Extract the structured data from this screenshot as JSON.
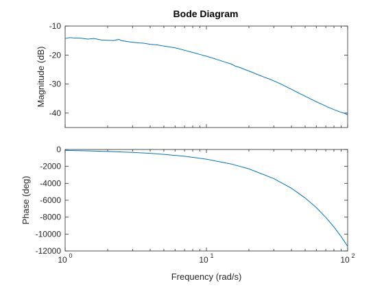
{
  "chart_data": {
    "type": "line",
    "title": "Bode Diagram",
    "xlabel": "Frequency (rad/s)",
    "xscale": "log",
    "xlim": [
      1,
      100
    ],
    "x_ticks": [
      1,
      10,
      100
    ],
    "x_tick_labels": [
      {
        "base": "10",
        "exp": "0"
      },
      {
        "base": "10",
        "exp": "1"
      },
      {
        "base": "10",
        "exp": "2"
      }
    ],
    "line_color": "#0072BD",
    "panels": [
      {
        "name": "magnitude",
        "ylabel": "Magnitude (dB)",
        "ylim": [
          -45,
          -10
        ],
        "y_ticks": [
          -10,
          -20,
          -30,
          -40
        ],
        "series": [
          {
            "x": [
              1.0,
              1.08,
              1.15,
              1.3,
              1.45,
              1.6,
              1.8,
              2.0,
              2.2,
              2.4,
              2.5,
              2.7,
              3.0,
              3.3,
              3.6,
              4.0,
              4.5,
              5.0,
              5.5,
              6.0,
              6.6,
              7.2,
              8.0,
              9.0,
              10.0,
              11.0,
              12.0,
              13.5,
              15.0,
              16.0,
              17.5,
              19.0,
              21.0,
              23.0,
              25.0,
              28.0,
              31.0,
              34.0,
              37.0,
              40.0,
              45.0,
              50.0,
              55.0,
              60.0,
              66.0,
              72.0,
              80.0,
              88.0,
              95.0,
              100.0
            ],
            "y": [
              -14.3,
              -14.0,
              -14.1,
              -14.2,
              -14.5,
              -14.3,
              -14.8,
              -14.9,
              -15.0,
              -14.6,
              -15.0,
              -15.3,
              -15.6,
              -15.8,
              -15.9,
              -16.3,
              -16.5,
              -16.9,
              -17.2,
              -17.5,
              -18.0,
              -18.5,
              -19.1,
              -19.8,
              -20.4,
              -21.0,
              -21.6,
              -22.4,
              -23.1,
              -23.8,
              -24.4,
              -25.1,
              -25.9,
              -26.7,
              -27.4,
              -28.3,
              -29.2,
              -30.1,
              -31.0,
              -31.8,
              -33.1,
              -34.2,
              -35.2,
              -36.1,
              -37.0,
              -37.9,
              -38.8,
              -39.6,
              -40.1,
              -40.6
            ]
          }
        ]
      },
      {
        "name": "phase",
        "ylabel": "Phase (deg)",
        "ylim": [
          -12000,
          0
        ],
        "y_ticks": [
          0,
          -2000,
          -4000,
          -6000,
          -8000,
          -10000,
          -12000
        ],
        "series": [
          {
            "x": [
              1.0,
              1.5,
              2.0,
              3.0,
              4.0,
              5.0,
              7.0,
              10.0,
              15.0,
              20.0,
              30.0,
              40.0,
              50.0,
              60.0,
              70.0,
              80.0,
              90.0,
              100.0
            ],
            "y": [
              -115,
              -172,
              -229,
              -344,
              -458,
              -573,
              -802,
              -1146,
              -1719,
              -2292,
              -3438,
              -4584,
              -5730,
              -6876,
              -8022,
              -9168,
              -10314,
              -11459
            ]
          }
        ]
      }
    ]
  }
}
